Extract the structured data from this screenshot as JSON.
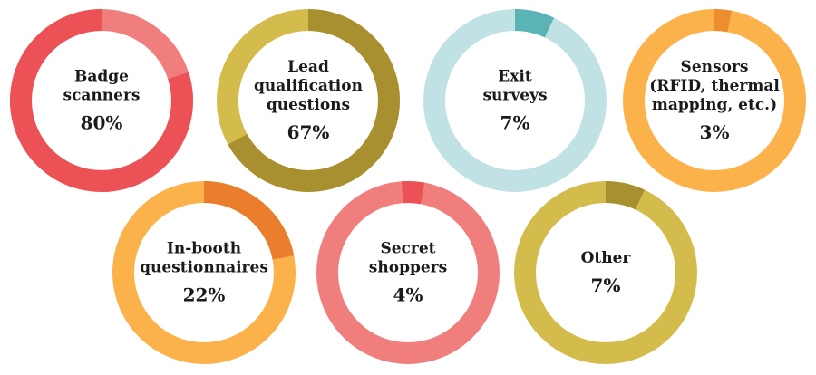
{
  "chart_data": {
    "type": "pie",
    "title": "",
    "items": [
      {
        "label_lines": [
          "Badge",
          "scanners"
        ],
        "value": 80,
        "value_label": "80%",
        "colors": {
          "value": "#ec5255",
          "rest": "#f07e7d"
        }
      },
      {
        "label_lines": [
          "Lead",
          "qualification",
          "questions"
        ],
        "value": 67,
        "value_label": "67%",
        "colors": {
          "value": "#a89030",
          "rest": "#d3bc4c"
        }
      },
      {
        "label_lines": [
          "Exit",
          "surveys"
        ],
        "value": 7,
        "value_label": "7%",
        "colors": {
          "value": "#5ab4b5",
          "rest": "#c0e2e5"
        }
      },
      {
        "label_lines": [
          "Sensors",
          "(RFID, thermal",
          "mapping, etc.)"
        ],
        "value": 3,
        "value_label": "3%",
        "colors": {
          "value": "#ec8d2e",
          "rest": "#fbb24b"
        }
      },
      {
        "label_lines": [
          "In-booth",
          "questionnaires"
        ],
        "value": 22,
        "value_label": "22%",
        "colors": {
          "value": "#ea7e2c",
          "rest": "#fbb24b"
        }
      },
      {
        "label_lines": [
          "Secret",
          "shoppers"
        ],
        "value": 4,
        "value_label": "4%",
        "colors": {
          "value": "#ec5255",
          "rest": "#f07e7d"
        }
      },
      {
        "label_lines": [
          "Other"
        ],
        "value": 7,
        "value_label": "7%",
        "colors": {
          "value": "#a89030",
          "rest": "#d3bc4c"
        }
      }
    ]
  }
}
